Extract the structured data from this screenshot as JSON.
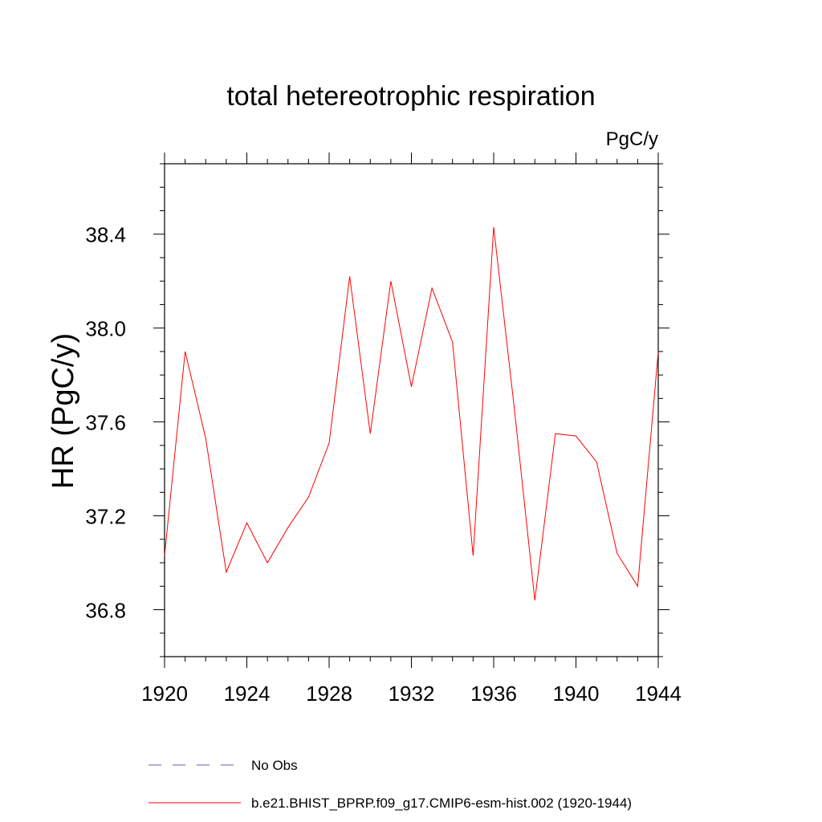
{
  "chart_data": {
    "type": "line",
    "title": "total hetereotrophic respiration",
    "units_label": "PgC/y",
    "xlabel": "",
    "ylabel": "HR  (PgC/y)",
    "xlim": [
      1920,
      1944
    ],
    "ylim": [
      36.6,
      38.7
    ],
    "x_ticks": [
      1920,
      1924,
      1928,
      1932,
      1936,
      1940,
      1944
    ],
    "x_tick_labels": [
      "1920",
      "1924",
      "1928",
      "1932",
      "1936",
      "1940",
      "1944"
    ],
    "y_ticks": [
      36.8,
      37.2,
      37.6,
      38.0,
      38.4
    ],
    "y_tick_labels": [
      "36.8",
      "37.2",
      "37.6",
      "38.0",
      "38.4"
    ],
    "grid": false,
    "legend_position": "bottom",
    "series": [
      {
        "name": "b.e21.BHIST_BPRP.f09_g17.CMIP6-esm-hist.002 (1920-1944)",
        "color": "#ff0000",
        "style": "solid",
        "x": [
          1920,
          1921,
          1922,
          1923,
          1924,
          1925,
          1926,
          1927,
          1928,
          1929,
          1930,
          1931,
          1932,
          1933,
          1934,
          1935,
          1936,
          1937,
          1938,
          1939,
          1940,
          1941,
          1942,
          1943,
          1944
        ],
        "y": [
          37.03,
          37.9,
          37.53,
          36.96,
          37.17,
          37.0,
          37.15,
          37.28,
          37.51,
          38.22,
          37.55,
          38.2,
          37.75,
          38.17,
          37.94,
          37.03,
          38.43,
          37.66,
          36.84,
          37.55,
          37.54,
          37.43,
          37.04,
          36.9,
          37.9
        ]
      },
      {
        "name": "No Obs",
        "color": "#6a5acd",
        "style": "dashed",
        "x": [],
        "y": []
      }
    ]
  }
}
